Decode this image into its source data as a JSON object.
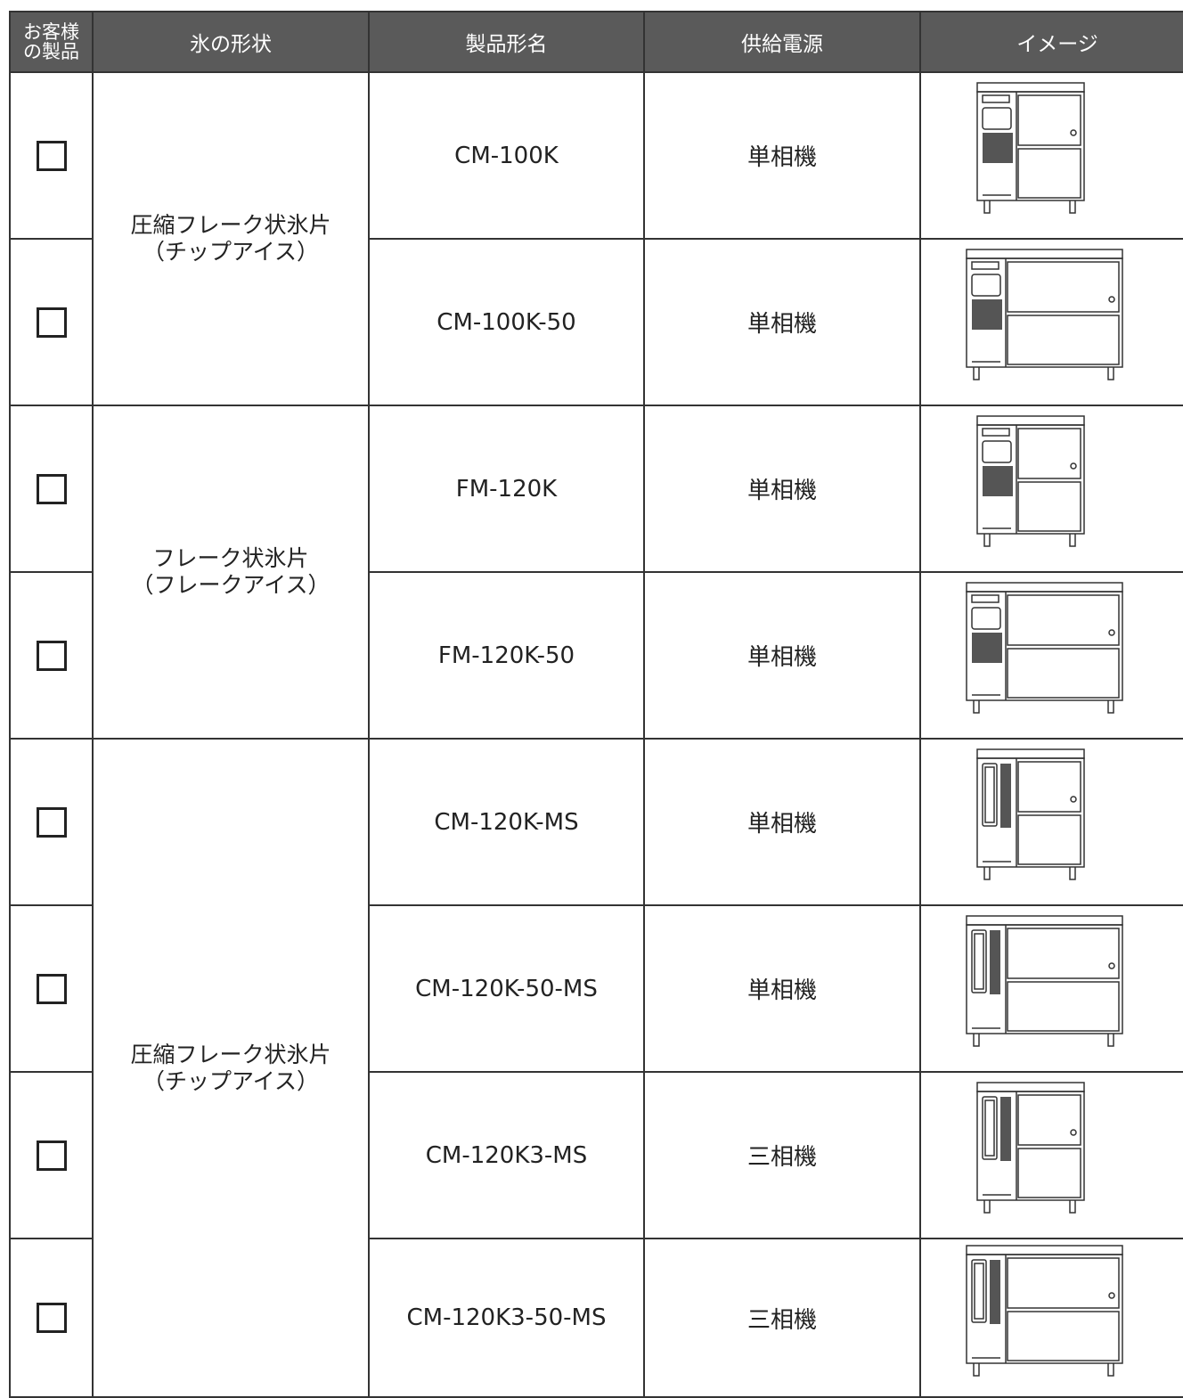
{
  "table": {
    "header": [
      "お客様の製品",
      "氷の形状",
      "製品形名",
      "供給電源",
      "イメージ"
    ],
    "groups": [
      {
        "shape": [
          "圧縮フレーク状氷片",
          "（チップアイス）"
        ],
        "rows": [
          {
            "model": "CM-100K",
            "power": "単相機"
          },
          {
            "model": "CM-100K-50",
            "power": "単相機"
          }
        ]
      },
      {
        "shape": [
          "フレーク状氷片",
          "（フレークアイス）"
        ],
        "rows": [
          {
            "model": "FM-120K",
            "power": "単相機"
          },
          {
            "model": "FM-120K-50",
            "power": "単相機"
          }
        ]
      },
      {
        "shape": [
          "圧縮フレーク状氷片",
          "（チップアイス）"
        ],
        "rows": [
          {
            "model": "CM-120K-MS",
            "power": "単相機"
          },
          {
            "model": "CM-120K-50-MS",
            "power": "単相機"
          },
          {
            "model": "CM-120K3-MS",
            "power": "三相機"
          },
          {
            "model": "CM-120K3-50-MS",
            "power": "三相機"
          }
        ]
      }
    ]
  }
}
